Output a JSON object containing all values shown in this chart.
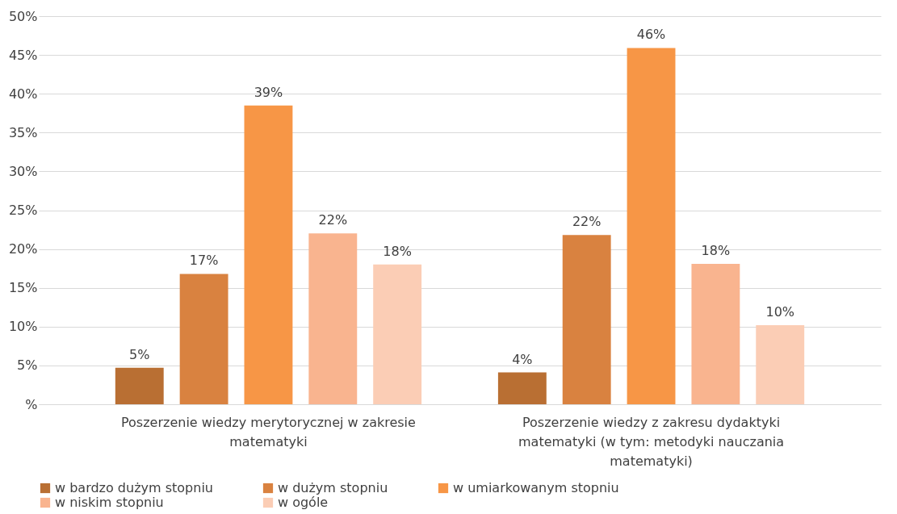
{
  "chart_data": {
    "type": "bar",
    "categories": [
      "Poszerzenie wiedzy merytorycznej w zakresie matematyki",
      "Poszerzenie wiedzy z zakresu dydaktyki matematyki (w tym: metodyki nauczania matematyki)"
    ],
    "series": [
      {
        "name": "w bardzo dużym stopniu",
        "color": "#b96f33",
        "values": [
          4.7,
          4.1
        ],
        "value_labels": [
          "5%",
          "4%"
        ]
      },
      {
        "name": "w dużym stopniu",
        "color": "#d98240",
        "values": [
          16.8,
          21.8
        ],
        "value_labels": [
          "17%",
          "22%"
        ]
      },
      {
        "name": "w umiarkowanym stopniu",
        "color": "#f79646",
        "values": [
          38.5,
          45.9
        ],
        "value_labels": [
          "39%",
          "46%"
        ]
      },
      {
        "name": "w niskim stopniu",
        "color": "#f9b48f",
        "values": [
          22,
          18.1
        ],
        "value_labels": [
          "22%",
          "18%"
        ]
      },
      {
        "name": "w ogóle",
        "color": "#fbcdb5",
        "values": [
          18,
          10.2
        ],
        "value_labels": [
          "18%",
          "10%"
        ]
      }
    ],
    "ylim": [
      0,
      50
    ],
    "yticks": [
      {
        "value": 0,
        "label": "%"
      },
      {
        "value": 5,
        "label": "5%"
      },
      {
        "value": 10,
        "label": "10%"
      },
      {
        "value": 15,
        "label": "15%"
      },
      {
        "value": 20,
        "label": "20%"
      },
      {
        "value": 25,
        "label": "25%"
      },
      {
        "value": 30,
        "label": "30%"
      },
      {
        "value": 35,
        "label": "35%"
      },
      {
        "value": 40,
        "label": "40%"
      },
      {
        "value": 45,
        "label": "45%"
      },
      {
        "value": 50,
        "label": "50%"
      }
    ],
    "grid": "y",
    "legend": "bottom"
  }
}
